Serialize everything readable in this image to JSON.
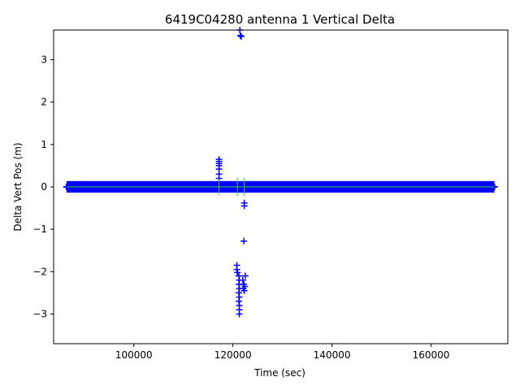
{
  "chart_data": {
    "type": "scatter",
    "title": "6419C04280 antenna 1 Vertical Delta",
    "xlabel": "Time (sec)",
    "ylabel": "Delta Vert Pos (m)",
    "xlim": [
      83800,
      175500
    ],
    "ylim": [
      -3.7,
      3.7
    ],
    "x_ticks": [
      100000,
      120000,
      140000,
      160000
    ],
    "x_tick_labels": [
      "100000",
      "120000",
      "140000",
      "160000"
    ],
    "y_ticks": [
      -3,
      -2,
      -1,
      0,
      1,
      2,
      3
    ],
    "y_tick_labels": [
      "−3",
      "−2",
      "−1",
      "0",
      "1",
      "2",
      "3"
    ],
    "grid": false,
    "legend": "none",
    "series": [
      {
        "marker": "+",
        "color": "#0000ff",
        "band": {
          "x_start": 86400,
          "x_end": 172800,
          "y_min": -0.06,
          "y_max": 0.06
        },
        "points": [
          [
            117200,
            0.65
          ],
          [
            117200,
            0.6
          ],
          [
            117200,
            0.55
          ],
          [
            117200,
            0.5
          ],
          [
            117200,
            0.42
          ],
          [
            117200,
            0.3
          ],
          [
            117200,
            0.2
          ],
          [
            117200,
            0.1
          ],
          [
            121400,
            3.7
          ],
          [
            121500,
            3.57
          ],
          [
            121700,
            3.55
          ],
          [
            122300,
            -0.38
          ],
          [
            122300,
            -0.45
          ],
          [
            122200,
            -1.28
          ],
          [
            120800,
            -1.85
          ],
          [
            120800,
            -1.95
          ],
          [
            120900,
            -2.02
          ],
          [
            121200,
            -2.1
          ],
          [
            121300,
            -2.2
          ],
          [
            121200,
            -2.3
          ],
          [
            121300,
            -2.4
          ],
          [
            121200,
            -2.5
          ],
          [
            121300,
            -2.6
          ],
          [
            121200,
            -2.7
          ],
          [
            121300,
            -2.8
          ],
          [
            121300,
            -2.9
          ],
          [
            121300,
            -3.0
          ],
          [
            122000,
            -2.2
          ],
          [
            122200,
            -2.3
          ],
          [
            122400,
            -2.35
          ],
          [
            122100,
            -2.4
          ],
          [
            122300,
            -2.45
          ],
          [
            122500,
            -2.1
          ]
        ]
      },
      {
        "marker": "line",
        "color": "#33cc33",
        "level": 0.0,
        "x_start": 86400,
        "x_end": 172800,
        "spikes": [
          {
            "x": 117200,
            "y_min": -0.2,
            "y_max": 0.2
          },
          {
            "x": 120900,
            "y_min": -0.22,
            "y_max": 0.22
          },
          {
            "x": 122300,
            "y_min": -0.22,
            "y_max": 0.22
          }
        ]
      }
    ]
  }
}
